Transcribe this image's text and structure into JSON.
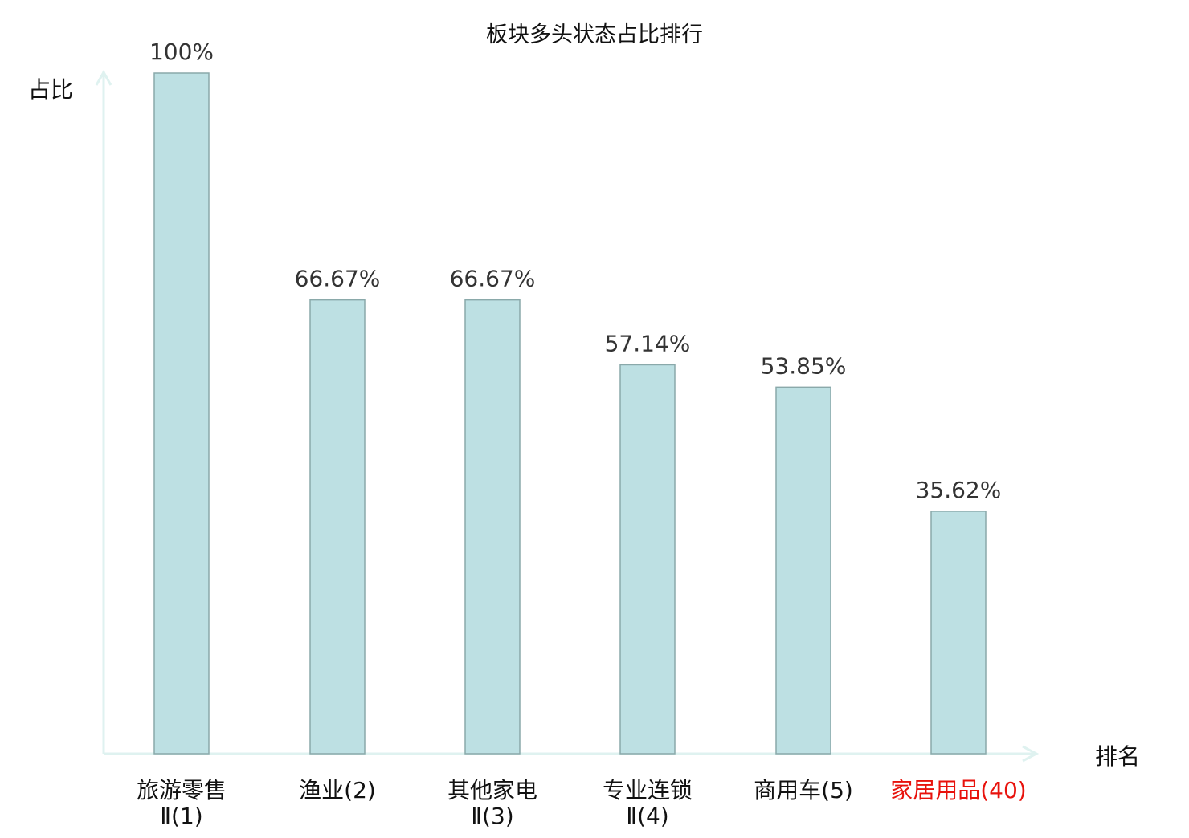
{
  "chart_data": {
    "type": "bar",
    "title": "板块多头状态占比排行",
    "ylabel": "占比",
    "xlabel": "排名",
    "ylim": [
      0,
      100
    ],
    "grid": false,
    "categories": [
      {
        "lines": [
          "旅游零售",
          "Ⅱ(1)"
        ],
        "highlight": false
      },
      {
        "lines": [
          "渔业(2)"
        ],
        "highlight": false
      },
      {
        "lines": [
          "其他家电",
          "Ⅱ(3)"
        ],
        "highlight": false
      },
      {
        "lines": [
          "专业连锁",
          "Ⅱ(4)"
        ],
        "highlight": false
      },
      {
        "lines": [
          "商用车(5)"
        ],
        "highlight": false
      },
      {
        "lines": [
          "家居用品(40)"
        ],
        "highlight": true
      }
    ],
    "values": [
      100,
      66.67,
      66.67,
      57.14,
      53.85,
      35.62
    ],
    "data_labels": [
      "100%",
      "66.67%",
      "66.67%",
      "57.14%",
      "53.85%",
      "35.62%"
    ],
    "colors": {
      "bar_fill": "#bde0e3",
      "bar_stroke": "#8aa9aa",
      "axis": "#dff2f0",
      "highlight_label": "#e8120c",
      "label": "#333333"
    }
  }
}
